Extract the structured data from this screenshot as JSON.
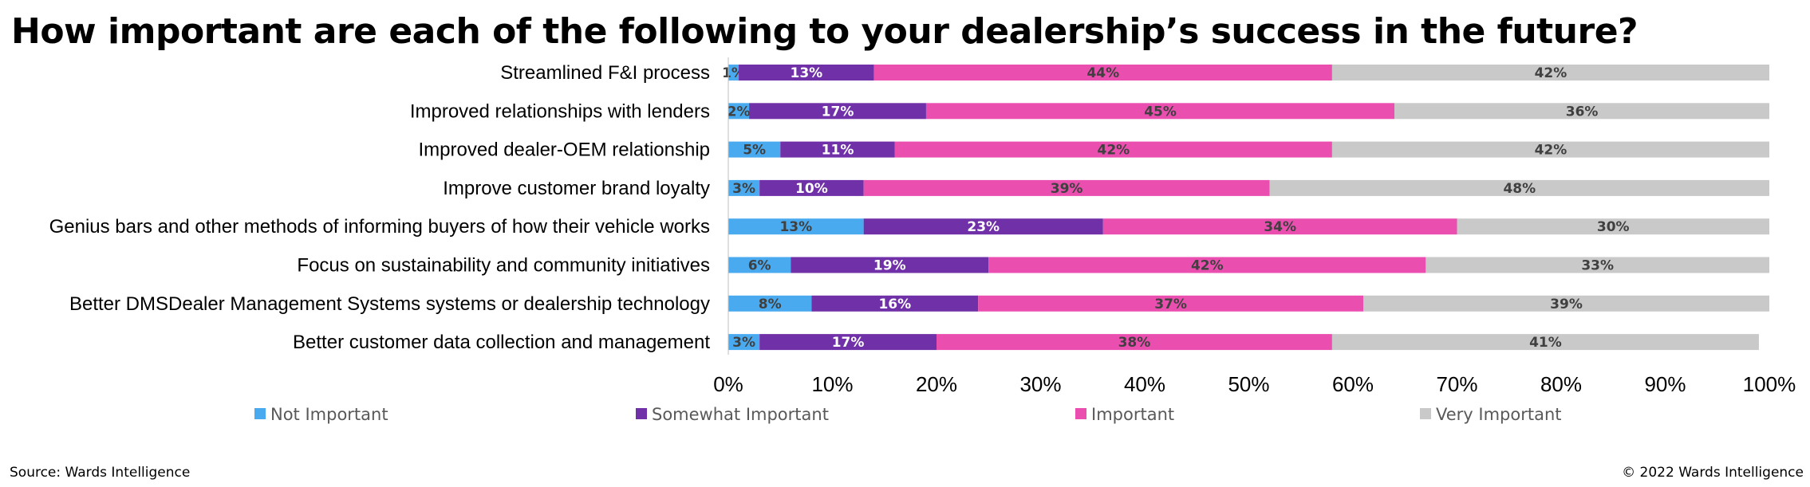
{
  "chart_data": {
    "type": "bar",
    "orientation": "horizontal",
    "stacked": true,
    "percent_stacked": true,
    "title": "How important are each of the following to your dealership’s success in the future?",
    "categories": [
      "Streamlined F&I process",
      "Improved relationships with lenders",
      "Improved dealer-OEM relationship",
      "Improve customer brand loyalty",
      "Genius bars and other methods of informing buyers of how their vehicle works",
      "Focus on sustainability and community initiatives",
      "Better DMSDealer Management Systems systems or dealership technology",
      "Better customer data collection and management"
    ],
    "series": [
      {
        "name": "Not Important",
        "color": "#4aaaf0",
        "label_color": "#404040",
        "values": [
          1,
          2,
          5,
          3,
          13,
          6,
          8,
          3
        ]
      },
      {
        "name": "Somewhat Important",
        "color": "#7030a8",
        "label_color": "#ffffff",
        "values": [
          13,
          17,
          11,
          10,
          23,
          19,
          16,
          17
        ]
      },
      {
        "name": "Important",
        "color": "#ea4fb0",
        "label_color": "#404040",
        "values": [
          44,
          45,
          42,
          39,
          34,
          42,
          37,
          38
        ]
      },
      {
        "name": "Very Important",
        "color": "#c9c9c9",
        "label_color": "#404040",
        "values": [
          42,
          36,
          42,
          48,
          30,
          33,
          39,
          41
        ]
      }
    ],
    "xlim": [
      0,
      100
    ],
    "x_ticks": [
      "0%",
      "10%",
      "20%",
      "30%",
      "40%",
      "50%",
      "60%",
      "70%",
      "80%",
      "90%",
      "100%"
    ],
    "xlabel": "",
    "ylabel": "",
    "grid": false,
    "legend_position": "bottom"
  },
  "footer": {
    "source": "Source: Wards Intelligence",
    "copyright": "© 2022 Wards Intelligence"
  }
}
